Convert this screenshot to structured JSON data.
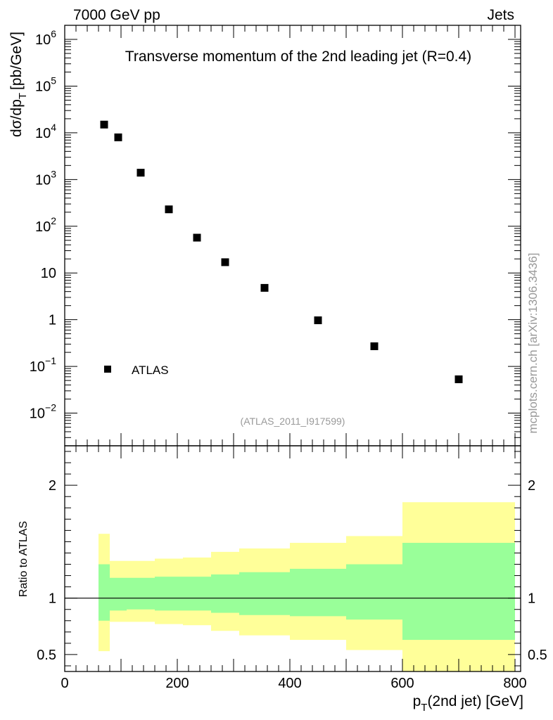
{
  "header": {
    "left": "7000 GeV pp",
    "right": "Jets"
  },
  "side_label": "mcplots.cern.ch [arXiv:1306.3436]",
  "chart_data": [
    {
      "type": "scatter",
      "title": "Transverse momentum of the 2nd leading jet (R=0.4)",
      "ylabel_main": "dσ/dp",
      "ylabel_sub": "T",
      "ylabel_tail": "[pb/GeV]",
      "yscale": "log",
      "ylim": [
        0.002,
        2000000
      ],
      "xlim": [
        0,
        810
      ],
      "ytick_labels": [
        {
          "value": 1000000,
          "base": "10",
          "exp": "6"
        },
        {
          "value": 100000,
          "base": "10",
          "exp": "5"
        },
        {
          "value": 10000,
          "base": "10",
          "exp": "4"
        },
        {
          "value": 1000,
          "base": "10",
          "exp": "3"
        },
        {
          "value": 100,
          "base": "10",
          "exp": "2"
        },
        {
          "value": 10,
          "base": "10",
          "exp": ""
        },
        {
          "value": 1,
          "base": "1",
          "exp": ""
        },
        {
          "value": 0.1,
          "base": "10",
          "exp": "−1"
        },
        {
          "value": 0.01,
          "base": "10",
          "exp": "−2"
        }
      ],
      "legend": [
        {
          "name": "ATLAS",
          "marker": "square"
        }
      ],
      "legend_position": "bottom-left",
      "annotation": "(ATLAS_2011_I917599)",
      "series": [
        {
          "name": "ATLAS",
          "points": [
            {
              "x": 70,
              "y": 15000
            },
            {
              "x": 95,
              "y": 8000
            },
            {
              "x": 135,
              "y": 1400
            },
            {
              "x": 185,
              "y": 230
            },
            {
              "x": 235,
              "y": 57
            },
            {
              "x": 285,
              "y": 17
            },
            {
              "x": 355,
              "y": 4.8
            },
            {
              "x": 450,
              "y": 0.97
            },
            {
              "x": 550,
              "y": 0.27
            },
            {
              "x": 700,
              "y": 0.053
            }
          ]
        }
      ]
    },
    {
      "type": "area",
      "ylabel": "Ratio to ATLAS",
      "xlabel_main": "p",
      "xlabel_sub": "T",
      "xlabel_tail": "(2nd jet) [GeV]",
      "xlim": [
        0,
        810
      ],
      "ylim": [
        0.35,
        2.35
      ],
      "xtick_labels": [
        "0",
        "200",
        "400",
        "600",
        "800"
      ],
      "ytick_labels": [
        "0.5",
        "1",
        "2"
      ],
      "reference_line": 1,
      "colors": {
        "inner_band": "#99ff99",
        "outer_band": "#ffff99"
      },
      "bins": [
        {
          "x_low": 60,
          "x_high": 80,
          "inner_low": 0.8,
          "inner_high": 1.3,
          "outer_low": 0.53,
          "outer_high": 1.57
        },
        {
          "x_low": 80,
          "x_high": 110,
          "inner_low": 0.89,
          "inner_high": 1.18,
          "outer_low": 0.79,
          "outer_high": 1.33
        },
        {
          "x_low": 110,
          "x_high": 160,
          "inner_low": 0.9,
          "inner_high": 1.18,
          "outer_low": 0.79,
          "outer_high": 1.33
        },
        {
          "x_low": 160,
          "x_high": 210,
          "inner_low": 0.89,
          "inner_high": 1.19,
          "outer_low": 0.77,
          "outer_high": 1.35
        },
        {
          "x_low": 210,
          "x_high": 260,
          "inner_low": 0.89,
          "inner_high": 1.19,
          "outer_low": 0.76,
          "outer_high": 1.36
        },
        {
          "x_low": 260,
          "x_high": 310,
          "inner_low": 0.87,
          "inner_high": 1.21,
          "outer_low": 0.71,
          "outer_high": 1.41
        },
        {
          "x_low": 310,
          "x_high": 400,
          "inner_low": 0.85,
          "inner_high": 1.23,
          "outer_low": 0.67,
          "outer_high": 1.44
        },
        {
          "x_low": 400,
          "x_high": 500,
          "inner_low": 0.84,
          "inner_high": 1.26,
          "outer_low": 0.63,
          "outer_high": 1.49
        },
        {
          "x_low": 500,
          "x_high": 600,
          "inner_low": 0.81,
          "inner_high": 1.3,
          "outer_low": 0.54,
          "outer_high": 1.55
        },
        {
          "x_low": 600,
          "x_high": 800,
          "inner_low": 0.63,
          "inner_high": 1.49,
          "outer_low": 0.35,
          "outer_high": 1.85
        }
      ]
    }
  ]
}
